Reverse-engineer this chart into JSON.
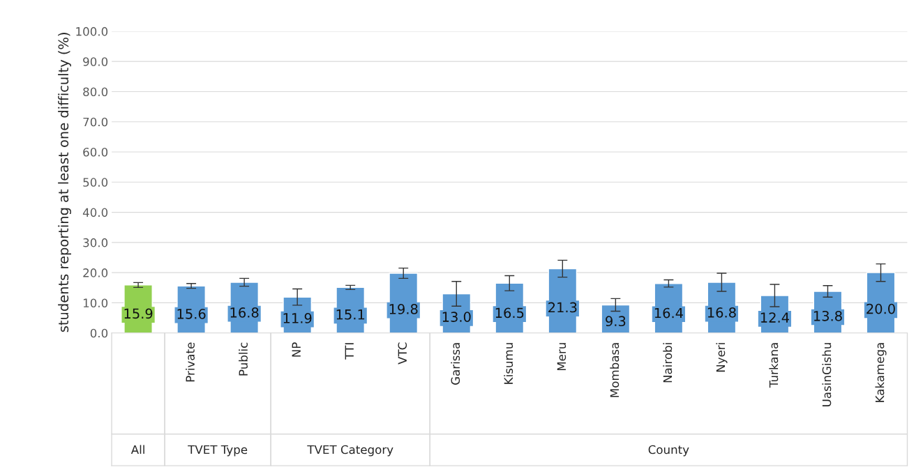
{
  "chart_data": {
    "type": "bar",
    "ylabel": "students reporting at least one difficulty (%)",
    "categories": [
      null,
      "Private",
      "Public",
      "NP",
      "TTI",
      "VTC",
      "Garissa",
      "Kisumu",
      "Meru",
      "Mombasa",
      "Nairobi",
      "Nyeri",
      "Turkana",
      "UasinGishu",
      "Kakamega"
    ],
    "values": [
      15.9,
      15.6,
      16.8,
      11.9,
      15.1,
      19.8,
      13.0,
      16.5,
      21.3,
      9.3,
      16.4,
      16.8,
      12.4,
      13.8,
      20.0
    ],
    "colors": [
      "#92d050",
      "#5b9bd5",
      "#5b9bd5",
      "#5b9bd5",
      "#5b9bd5",
      "#5b9bd5",
      "#5b9bd5",
      "#5b9bd5",
      "#5b9bd5",
      "#5b9bd5",
      "#5b9bd5",
      "#5b9bd5",
      "#5b9bd5",
      "#5b9bd5",
      "#5b9bd5"
    ],
    "errors": [
      0.8,
      0.8,
      1.3,
      2.7,
      0.7,
      1.7,
      4.1,
      2.5,
      2.8,
      2.1,
      1.2,
      3.0,
      3.7,
      1.9,
      2.9
    ],
    "value_labels": [
      "15.9",
      "15.6",
      "16.8",
      "11.9",
      "15.1",
      "19.8",
      "13.0",
      "16.5",
      "21.3",
      "9.3",
      "16.4",
      "16.8",
      "12.4",
      "13.8",
      "20.0"
    ],
    "ylim": [
      0,
      100
    ],
    "yticks": [
      {
        "value": 0,
        "label": "0.0"
      },
      {
        "value": 10,
        "label": "10.0"
      },
      {
        "value": 20,
        "label": "20.0"
      },
      {
        "value": 30,
        "label": "30.0"
      },
      {
        "value": 40,
        "label": "40.0"
      },
      {
        "value": 50,
        "label": "50.0"
      },
      {
        "value": 60,
        "label": "60.0"
      },
      {
        "value": 70,
        "label": "70.0"
      },
      {
        "value": 80,
        "label": "80.0"
      },
      {
        "value": 90,
        "label": "90.0"
      },
      {
        "value": 100,
        "label": "100.0"
      }
    ],
    "grid": "y",
    "annotations": [
      "All",
      "TVET Type",
      "TVET Category",
      "County"
    ]
  }
}
